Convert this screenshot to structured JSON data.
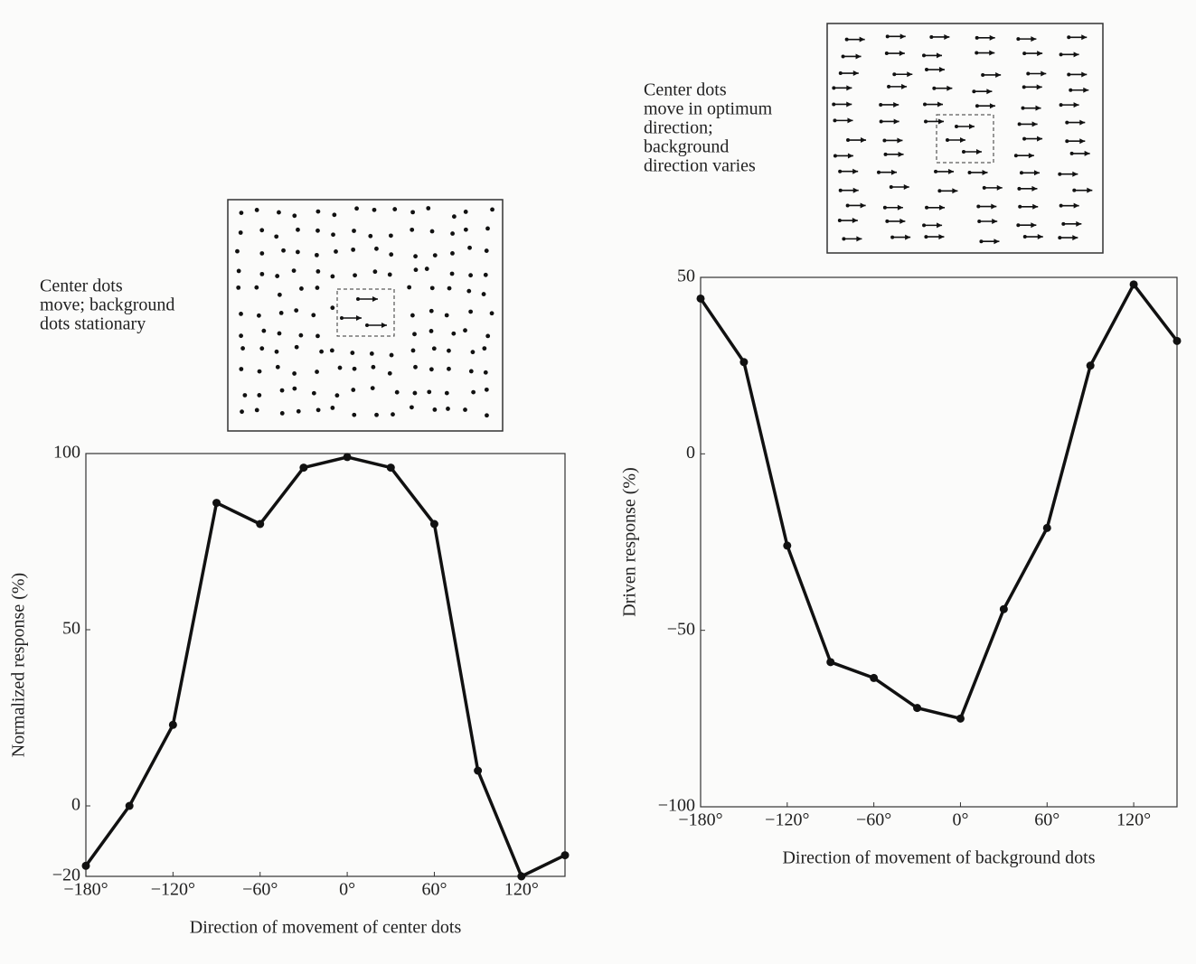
{
  "chart_data": [
    {
      "type": "line",
      "annotation": [
        "Center dots",
        "move; background",
        "dots stationary"
      ],
      "x_label": "Direction of movement of center dots",
      "y_label": "Normalized response (%)",
      "x": [
        -180,
        -150,
        -120,
        -90,
        -60,
        -30,
        0,
        30,
        60,
        90,
        120,
        150
      ],
      "values": [
        -17,
        0,
        23,
        86,
        80,
        96,
        99,
        96,
        80,
        10,
        -20,
        -14
      ],
      "color": "#111111",
      "xlim": [
        -180,
        150
      ],
      "xticks": [
        {
          "value": -180,
          "label": "−180°"
        },
        {
          "value": -120,
          "label": "−120°"
        },
        {
          "value": -60,
          "label": "−60°"
        },
        {
          "value": 0,
          "label": "0°"
        },
        {
          "value": 60,
          "label": "60°"
        },
        {
          "value": 120,
          "label": "120°"
        }
      ],
      "ylim": [
        -20,
        100
      ],
      "yticks": [
        {
          "value": -20,
          "label": "−20"
        },
        0,
        50,
        100
      ],
      "grid": false
    },
    {
      "type": "line",
      "annotation": [
        "Center dots",
        "move in optimum",
        "direction;",
        "background",
        "direction varies"
      ],
      "x_label": "Direction of movement of background dots",
      "y_label": "Driven response (%)",
      "x": [
        -180,
        -150,
        -120,
        -90,
        -60,
        -30,
        0,
        30,
        60,
        90,
        120,
        150
      ],
      "values": [
        44,
        26,
        -26,
        -59,
        -63.5,
        -72,
        -75,
        -44,
        -21,
        25,
        48,
        32
      ],
      "color": "#111111",
      "xlim": [
        -180,
        150
      ],
      "xticks": [
        {
          "value": -180,
          "label": "−180°"
        },
        {
          "value": -120,
          "label": "−120°"
        },
        {
          "value": -60,
          "label": "−60°"
        },
        {
          "value": 0,
          "label": "0°"
        },
        {
          "value": 60,
          "label": "60°"
        },
        {
          "value": 120,
          "label": "120°"
        }
      ],
      "ylim": [
        -100,
        50
      ],
      "yticks": [
        {
          "value": -100,
          "label": "−100"
        },
        {
          "value": -50,
          "label": "−50"
        },
        0,
        50
      ],
      "grid": false
    }
  ]
}
